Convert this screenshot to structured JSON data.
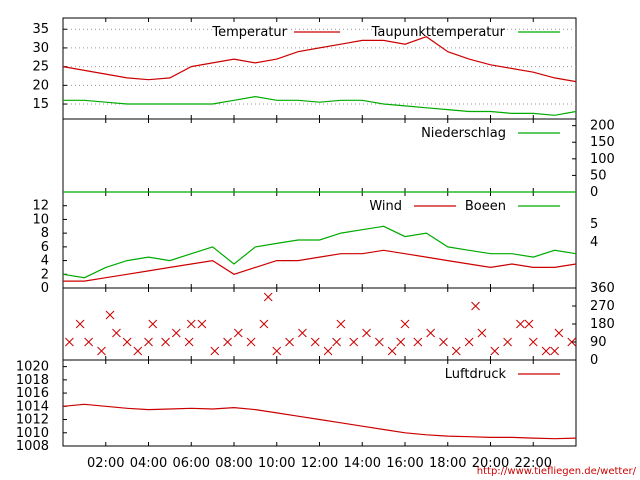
{
  "footer_url": "http://www.tiefliegen.de/wetter/",
  "x_axis": {
    "ticks": [
      "02:00",
      "04:00",
      "06:00",
      "08:00",
      "10:00",
      "12:00",
      "14:00",
      "16:00",
      "18:00",
      "20:00",
      "22:00"
    ],
    "tick_hours": [
      2,
      4,
      6,
      8,
      10,
      12,
      14,
      16,
      18,
      20,
      22
    ],
    "range_hours": [
      0,
      24
    ]
  },
  "chart_data": [
    {
      "type": "line",
      "ylim": [
        11,
        38
      ],
      "y_ticks": [
        15,
        20,
        25,
        30,
        35
      ],
      "grid": true,
      "x": [
        0,
        1,
        2,
        3,
        4,
        5,
        6,
        7,
        8,
        9,
        10,
        11,
        12,
        13,
        14,
        15,
        16,
        17,
        18,
        19,
        20,
        21,
        22,
        23,
        24
      ],
      "series": [
        {
          "name": "Temperatur",
          "color": "#cc0000",
          "legend": "top-right",
          "values": [
            25,
            24,
            23,
            22,
            21.5,
            22,
            25,
            26,
            27,
            26,
            27,
            29,
            30,
            31,
            32,
            32,
            31,
            33,
            29,
            27,
            25.5,
            24.5,
            23.5,
            22,
            21
          ]
        },
        {
          "name": "Taupunkttemperatur",
          "color": "#00aa00",
          "legend": "top-right",
          "values": [
            16,
            16,
            15.5,
            15,
            15,
            15,
            15,
            15,
            16,
            17,
            16,
            16,
            15.5,
            16,
            16,
            15,
            14.5,
            14,
            13.5,
            13,
            13,
            12.5,
            12.5,
            12,
            13
          ]
        }
      ]
    },
    {
      "type": "line",
      "ylim": [
        0,
        220
      ],
      "y_ticks": [
        0,
        50,
        100,
        150,
        200
      ],
      "grid": false,
      "x": [
        0,
        24
      ],
      "series": [
        {
          "name": "Niederschlag",
          "color": "#00aa00",
          "values": [
            0,
            0
          ]
        }
      ]
    },
    {
      "type": "line",
      "ylim": [
        0,
        14
      ],
      "y_ticks": [
        0,
        2,
        4,
        6,
        8,
        10,
        12
      ],
      "y2_ticks": [
        4,
        5
      ],
      "grid": false,
      "x": [
        0,
        1,
        2,
        3,
        4,
        5,
        6,
        7,
        8,
        9,
        10,
        11,
        12,
        13,
        14,
        15,
        16,
        17,
        18,
        19,
        20,
        21,
        22,
        23,
        24
      ],
      "series": [
        {
          "name": "Wind",
          "color": "#cc0000",
          "values": [
            1,
            1,
            1.5,
            2,
            2.5,
            3,
            3.5,
            4,
            2,
            3,
            4,
            4,
            4.5,
            5,
            5,
            5.5,
            5,
            4.5,
            4,
            3.5,
            3,
            3.5,
            3,
            3,
            3.5
          ]
        },
        {
          "name": "Boeen",
          "color": "#00aa00",
          "values": [
            2,
            1.5,
            3,
            4,
            4.5,
            4,
            5,
            6,
            3.5,
            6,
            6.5,
            7,
            7,
            8,
            8.5,
            9,
            7.5,
            8,
            6,
            5.5,
            5,
            5,
            4.5,
            5.5,
            5
          ]
        }
      ]
    },
    {
      "type": "scatter",
      "ylim": [
        0,
        360
      ],
      "y_ticks": [
        0,
        90,
        180,
        270,
        360
      ],
      "grid": false,
      "x": [
        0.3,
        0.8,
        1.2,
        1.8,
        2.5,
        3.0,
        3.5,
        4.2,
        4.8,
        5.3,
        5.9,
        6.5,
        7.1,
        7.7,
        8.2,
        8.8,
        9.4,
        10.0,
        10.6,
        11.2,
        11.8,
        12.4,
        13.0,
        13.6,
        14.2,
        14.8,
        15.4,
        16.0,
        16.6,
        17.2,
        17.8,
        18.4,
        19.0,
        19.6,
        20.2,
        20.8,
        21.4,
        22.0,
        22.6,
        23.2,
        23.8,
        2.2,
        4.0,
        6.0,
        9.6,
        12.8,
        15.8,
        19.3,
        21.8,
        23.0
      ],
      "series": [
        {
          "name": "",
          "color": "#cc0000",
          "values": [
            90,
            180,
            90,
            45,
            135,
            90,
            45,
            180,
            90,
            135,
            90,
            180,
            45,
            90,
            135,
            90,
            180,
            45,
            90,
            135,
            90,
            45,
            180,
            90,
            135,
            90,
            45,
            180,
            90,
            135,
            90,
            45,
            90,
            135,
            45,
            90,
            180,
            90,
            45,
            135,
            90,
            225,
            90,
            180,
            315,
            90,
            90,
            270,
            180,
            45
          ]
        }
      ]
    },
    {
      "type": "line",
      "ylim": [
        1008,
        1021
      ],
      "y_ticks": [
        1008,
        1010,
        1012,
        1014,
        1016,
        1018,
        1020
      ],
      "grid": false,
      "x": [
        0,
        1,
        2,
        3,
        4,
        5,
        6,
        7,
        8,
        9,
        10,
        11,
        12,
        13,
        14,
        15,
        16,
        17,
        18,
        19,
        20,
        21,
        22,
        23,
        24
      ],
      "series": [
        {
          "name": "Luftdruck",
          "color": "#cc0000",
          "values": [
            1014,
            1014.3,
            1014,
            1013.7,
            1013.5,
            1013.6,
            1013.7,
            1013.6,
            1013.8,
            1013.5,
            1013,
            1012.5,
            1012,
            1011.5,
            1011,
            1010.5,
            1010,
            1009.7,
            1009.5,
            1009.4,
            1009.3,
            1009.3,
            1009.2,
            1009.1,
            1009.2
          ]
        }
      ]
    }
  ]
}
